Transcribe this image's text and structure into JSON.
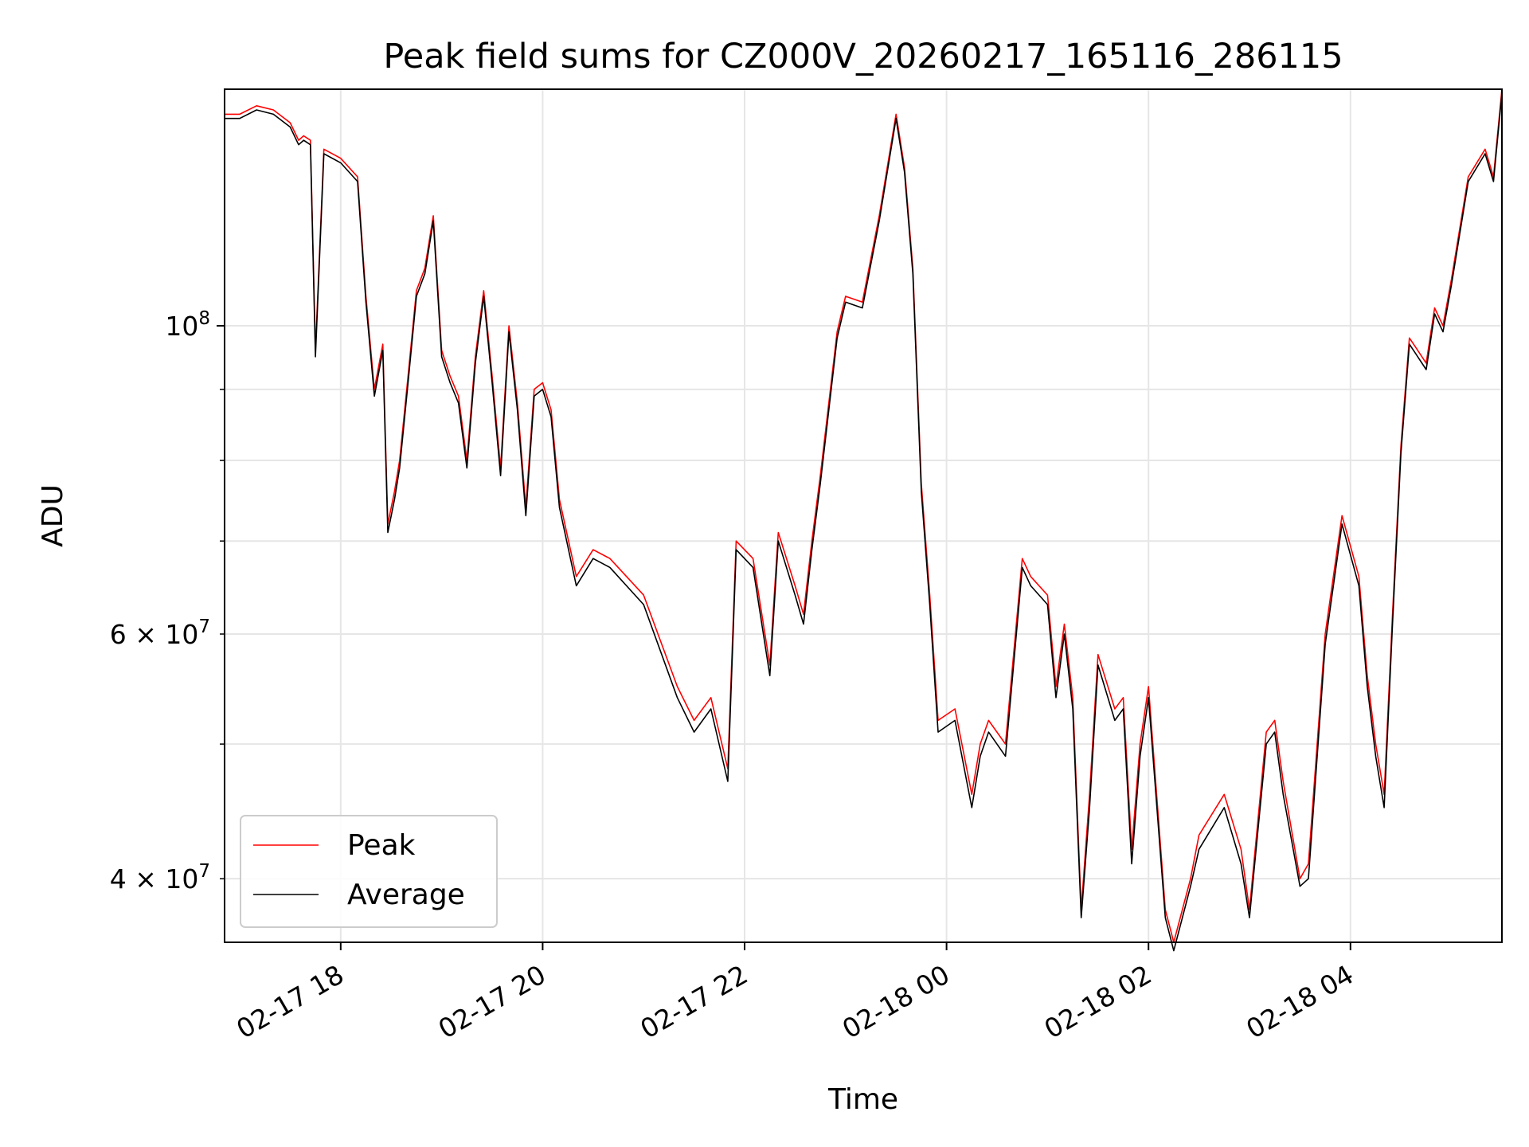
{
  "chart_data": {
    "type": "line",
    "title": "Peak field sums for CZ000V_20260217_165116_286115",
    "xlabel": "Time",
    "ylabel": "ADU",
    "yscale": "log",
    "ylim": [
      36000000,
      148000000
    ],
    "xlim": [
      "2026-02-17 16:51",
      "2026-02-18 05:30"
    ],
    "grid": true,
    "legend_position": "lower-left",
    "x_ticks": [
      {
        "t": "2026-02-17 18:00",
        "label": "02-17 18"
      },
      {
        "t": "2026-02-17 20:00",
        "label": "02-17 20"
      },
      {
        "t": "2026-02-17 22:00",
        "label": "02-17 22"
      },
      {
        "t": "2026-02-18 00:00",
        "label": "02-18 00"
      },
      {
        "t": "2026-02-18 02:00",
        "label": "02-18 02"
      },
      {
        "t": "2026-02-18 04:00",
        "label": "02-18 04"
      }
    ],
    "y_ticks_major": [
      {
        "v": 100000000,
        "base": "10",
        "exp": "8"
      }
    ],
    "y_ticks_minor": [
      {
        "v": 40000000,
        "mant": "4",
        "exp": "7"
      },
      {
        "v": 50000000,
        "mant": "",
        "exp": ""
      },
      {
        "v": 60000000,
        "mant": "6",
        "exp": "7"
      },
      {
        "v": 70000000,
        "mant": "",
        "exp": ""
      },
      {
        "v": 80000000,
        "mant": "",
        "exp": ""
      },
      {
        "v": 90000000,
        "mant": "",
        "exp": ""
      }
    ],
    "colors": {
      "peak": "#ff0000",
      "average": "#000000"
    },
    "series": [
      {
        "name": "Peak",
        "color": "#ff0000",
        "x": [
          "2026-02-17 16:51",
          "2026-02-17 17:00",
          "2026-02-17 17:10",
          "2026-02-17 17:20",
          "2026-02-17 17:30",
          "2026-02-17 17:35",
          "2026-02-17 17:38",
          "2026-02-17 17:42",
          "2026-02-17 17:45",
          "2026-02-17 17:50",
          "2026-02-17 18:00",
          "2026-02-17 18:10",
          "2026-02-17 18:15",
          "2026-02-17 18:20",
          "2026-02-17 18:25",
          "2026-02-17 18:28",
          "2026-02-17 18:32",
          "2026-02-17 18:35",
          "2026-02-17 18:40",
          "2026-02-17 18:45",
          "2026-02-17 18:50",
          "2026-02-17 18:55",
          "2026-02-17 19:00",
          "2026-02-17 19:05",
          "2026-02-17 19:10",
          "2026-02-17 19:15",
          "2026-02-17 19:20",
          "2026-02-17 19:25",
          "2026-02-17 19:30",
          "2026-02-17 19:35",
          "2026-02-17 19:40",
          "2026-02-17 19:45",
          "2026-02-17 19:50",
          "2026-02-17 19:55",
          "2026-02-17 20:00",
          "2026-02-17 20:05",
          "2026-02-17 20:10",
          "2026-02-17 20:20",
          "2026-02-17 20:30",
          "2026-02-17 20:40",
          "2026-02-17 21:00",
          "2026-02-17 21:20",
          "2026-02-17 21:30",
          "2026-02-17 21:40",
          "2026-02-17 21:50",
          "2026-02-17 21:55",
          "2026-02-17 22:05",
          "2026-02-17 22:15",
          "2026-02-17 22:20",
          "2026-02-17 22:30",
          "2026-02-17 22:35",
          "2026-02-17 22:40",
          "2026-02-17 22:45",
          "2026-02-17 22:55",
          "2026-02-17 23:00",
          "2026-02-17 23:10",
          "2026-02-17 23:20",
          "2026-02-17 23:30",
          "2026-02-17 23:35",
          "2026-02-17 23:40",
          "2026-02-17 23:45",
          "2026-02-17 23:50",
          "2026-02-17 23:55",
          "2026-02-18 00:05",
          "2026-02-18 00:15",
          "2026-02-18 00:20",
          "2026-02-18 00:25",
          "2026-02-18 00:35",
          "2026-02-18 00:45",
          "2026-02-18 00:50",
          "2026-02-18 01:00",
          "2026-02-18 01:05",
          "2026-02-18 01:10",
          "2026-02-18 01:15",
          "2026-02-18 01:20",
          "2026-02-18 01:25",
          "2026-02-18 01:30",
          "2026-02-18 01:40",
          "2026-02-18 01:45",
          "2026-02-18 01:50",
          "2026-02-18 01:55",
          "2026-02-18 02:00",
          "2026-02-18 02:10",
          "2026-02-18 02:15",
          "2026-02-18 02:25",
          "2026-02-18 02:30",
          "2026-02-18 02:45",
          "2026-02-18 02:55",
          "2026-02-18 03:00",
          "2026-02-18 03:10",
          "2026-02-18 03:15",
          "2026-02-18 03:20",
          "2026-02-18 03:30",
          "2026-02-18 03:35",
          "2026-02-18 03:45",
          "2026-02-18 03:55",
          "2026-02-18 04:05",
          "2026-02-18 04:10",
          "2026-02-18 04:15",
          "2026-02-18 04:20",
          "2026-02-18 04:25",
          "2026-02-18 04:30",
          "2026-02-18 04:35",
          "2026-02-18 04:40",
          "2026-02-18 04:45",
          "2026-02-18 04:50",
          "2026-02-18 04:55",
          "2026-02-18 05:00",
          "2026-02-18 05:10",
          "2026-02-18 05:20",
          "2026-02-18 05:25",
          "2026-02-18 05:30"
        ],
        "values": [
          142000000,
          142000000,
          144000000,
          143000000,
          140000000,
          136000000,
          137000000,
          136000000,
          96000000,
          134000000,
          132000000,
          128000000,
          105000000,
          90000000,
          97000000,
          72000000,
          76000000,
          80000000,
          92000000,
          106000000,
          110000000,
          120000000,
          96000000,
          92000000,
          89000000,
          80000000,
          95000000,
          106000000,
          92000000,
          79000000,
          100000000,
          88000000,
          74000000,
          90000000,
          91000000,
          87000000,
          75000000,
          66000000,
          69000000,
          68000000,
          64000000,
          55000000,
          52000000,
          54000000,
          48000000,
          70000000,
          68000000,
          57000000,
          71000000,
          65000000,
          62000000,
          70000000,
          78000000,
          99000000,
          105000000,
          104000000,
          120000000,
          142000000,
          130000000,
          110000000,
          77000000,
          64000000,
          52000000,
          53000000,
          46000000,
          50000000,
          52000000,
          50000000,
          68000000,
          66000000,
          64000000,
          55000000,
          61000000,
          54000000,
          38000000,
          46000000,
          58000000,
          53000000,
          54000000,
          42000000,
          50000000,
          55000000,
          38000000,
          36000000,
          40000000,
          43000000,
          46000000,
          42000000,
          38000000,
          51000000,
          52000000,
          47000000,
          40000000,
          41000000,
          60000000,
          73000000,
          66000000,
          56000000,
          50000000,
          46000000,
          62000000,
          82000000,
          98000000,
          96000000,
          94000000,
          103000000,
          100000000,
          108000000,
          128000000,
          134000000,
          128000000,
          148000000
        ]
      },
      {
        "name": "Average",
        "color": "#000000",
        "x": [
          "2026-02-17 16:51",
          "2026-02-17 17:00",
          "2026-02-17 17:10",
          "2026-02-17 17:20",
          "2026-02-17 17:30",
          "2026-02-17 17:35",
          "2026-02-17 17:38",
          "2026-02-17 17:42",
          "2026-02-17 17:45",
          "2026-02-17 17:50",
          "2026-02-17 18:00",
          "2026-02-17 18:10",
          "2026-02-17 18:15",
          "2026-02-17 18:20",
          "2026-02-17 18:25",
          "2026-02-17 18:28",
          "2026-02-17 18:32",
          "2026-02-17 18:35",
          "2026-02-17 18:40",
          "2026-02-17 18:45",
          "2026-02-17 18:50",
          "2026-02-17 18:55",
          "2026-02-17 19:00",
          "2026-02-17 19:05",
          "2026-02-17 19:10",
          "2026-02-17 19:15",
          "2026-02-17 19:20",
          "2026-02-17 19:25",
          "2026-02-17 19:30",
          "2026-02-17 19:35",
          "2026-02-17 19:40",
          "2026-02-17 19:45",
          "2026-02-17 19:50",
          "2026-02-17 19:55",
          "2026-02-17 20:00",
          "2026-02-17 20:05",
          "2026-02-17 20:10",
          "2026-02-17 20:20",
          "2026-02-17 20:30",
          "2026-02-17 20:40",
          "2026-02-17 21:00",
          "2026-02-17 21:20",
          "2026-02-17 21:30",
          "2026-02-17 21:40",
          "2026-02-17 21:50",
          "2026-02-17 21:55",
          "2026-02-17 22:05",
          "2026-02-17 22:15",
          "2026-02-17 22:20",
          "2026-02-17 22:30",
          "2026-02-17 22:35",
          "2026-02-17 22:40",
          "2026-02-17 22:45",
          "2026-02-17 22:55",
          "2026-02-17 23:00",
          "2026-02-17 23:10",
          "2026-02-17 23:20",
          "2026-02-17 23:30",
          "2026-02-17 23:35",
          "2026-02-17 23:40",
          "2026-02-17 23:45",
          "2026-02-17 23:50",
          "2026-02-17 23:55",
          "2026-02-18 00:05",
          "2026-02-18 00:15",
          "2026-02-18 00:20",
          "2026-02-18 00:25",
          "2026-02-18 00:35",
          "2026-02-18 00:45",
          "2026-02-18 00:50",
          "2026-02-18 01:00",
          "2026-02-18 01:05",
          "2026-02-18 01:10",
          "2026-02-18 01:15",
          "2026-02-18 01:20",
          "2026-02-18 01:25",
          "2026-02-18 01:30",
          "2026-02-18 01:40",
          "2026-02-18 01:45",
          "2026-02-18 01:50",
          "2026-02-18 01:55",
          "2026-02-18 02:00",
          "2026-02-18 02:10",
          "2026-02-18 02:15",
          "2026-02-18 02:25",
          "2026-02-18 02:30",
          "2026-02-18 02:45",
          "2026-02-18 02:55",
          "2026-02-18 03:00",
          "2026-02-18 03:10",
          "2026-02-18 03:15",
          "2026-02-18 03:20",
          "2026-02-18 03:30",
          "2026-02-18 03:35",
          "2026-02-18 03:45",
          "2026-02-18 03:55",
          "2026-02-18 04:05",
          "2026-02-18 04:10",
          "2026-02-18 04:15",
          "2026-02-18 04:20",
          "2026-02-18 04:25",
          "2026-02-18 04:30",
          "2026-02-18 04:35",
          "2026-02-18 04:40",
          "2026-02-18 04:45",
          "2026-02-18 04:50",
          "2026-02-18 04:55",
          "2026-02-18 05:00",
          "2026-02-18 05:10",
          "2026-02-18 05:20",
          "2026-02-18 05:25",
          "2026-02-18 05:30"
        ],
        "values": [
          141000000,
          141000000,
          143000000,
          142000000,
          139000000,
          135000000,
          136000000,
          135000000,
          95000000,
          133000000,
          131000000,
          127000000,
          104000000,
          89000000,
          96000000,
          71000000,
          75000000,
          79000000,
          91000000,
          105000000,
          109000000,
          119000000,
          95000000,
          91000000,
          88000000,
          79000000,
          94000000,
          105000000,
          91000000,
          78000000,
          99000000,
          87000000,
          73000000,
          89000000,
          90000000,
          86000000,
          74000000,
          65000000,
          68000000,
          67000000,
          63000000,
          54000000,
          51000000,
          53000000,
          47000000,
          69000000,
          67000000,
          56000000,
          70000000,
          64000000,
          61000000,
          69000000,
          77000000,
          98000000,
          104000000,
          103000000,
          119000000,
          141000000,
          129000000,
          109000000,
          76000000,
          63000000,
          51000000,
          52000000,
          45000000,
          49000000,
          51000000,
          49000000,
          67000000,
          65000000,
          63000000,
          54000000,
          60000000,
          53000000,
          37500000,
          45000000,
          57000000,
          52000000,
          53000000,
          41000000,
          49000000,
          54000000,
          37500000,
          35500000,
          39500000,
          42000000,
          45000000,
          41000000,
          37500000,
          50000000,
          51000000,
          46000000,
          39500000,
          40000000,
          59000000,
          72000000,
          65000000,
          55000000,
          49000000,
          45000000,
          61000000,
          81000000,
          97000000,
          95000000,
          93000000,
          102000000,
          99000000,
          107000000,
          127000000,
          133000000,
          127000000,
          147000000
        ]
      }
    ]
  }
}
